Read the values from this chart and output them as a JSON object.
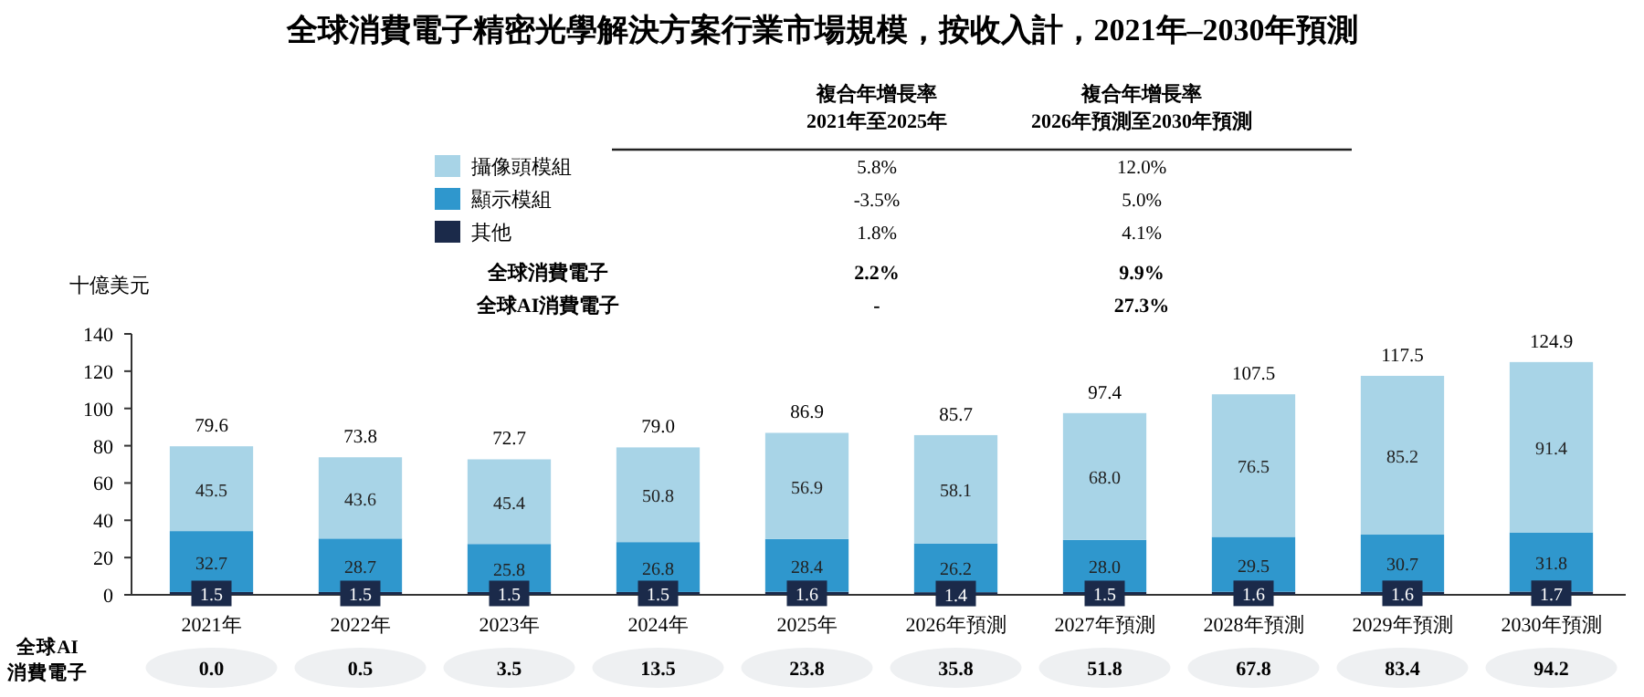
{
  "chart_data": {
    "type": "bar",
    "title": "全球消費電子精密光學解決方案行業市場規模，按收入計，2021年–2030年預測",
    "ylabel": "十億美元",
    "stacked": true,
    "legend": "top",
    "grid": false,
    "categories": [
      "2021年",
      "2022年",
      "2023年",
      "2024年",
      "2025年",
      "2026年預測",
      "2027年預測",
      "2028年預測",
      "2029年預測",
      "2030年預測"
    ],
    "ylim": [
      0,
      140
    ],
    "yticks": [
      0,
      20,
      40,
      60,
      80,
      100,
      120,
      140
    ],
    "series": [
      {
        "name": "其他",
        "color": "#1b2a4a",
        "values": [
          1.5,
          1.5,
          1.5,
          1.5,
          1.6,
          1.4,
          1.5,
          1.6,
          1.6,
          1.7
        ],
        "value_labels": [
          "1.5",
          "1.5",
          "1.5",
          "1.5",
          "1.6",
          "1.4",
          "1.5",
          "1.6",
          "1.6",
          "1.7"
        ]
      },
      {
        "name": "顯示模組",
        "color": "#2f97cd",
        "values": [
          32.7,
          28.7,
          25.8,
          26.8,
          28.4,
          26.2,
          28.0,
          29.5,
          30.7,
          31.8
        ],
        "value_labels": [
          "32.7",
          "28.7",
          "25.8",
          "26.8",
          "28.4",
          "26.2",
          "28.0",
          "29.5",
          "30.7",
          "31.8"
        ]
      },
      {
        "name": "攝像頭模組",
        "color": "#a8d4e7",
        "values": [
          45.5,
          43.6,
          45.4,
          50.8,
          56.9,
          58.1,
          68.0,
          76.5,
          85.2,
          91.4
        ],
        "value_labels": [
          "45.5",
          "43.6",
          "45.4",
          "50.8",
          "56.9",
          "58.1",
          "68.0",
          "76.5",
          "85.2",
          "91.4"
        ]
      }
    ],
    "totals": [
      "79.6",
      "73.8",
      "72.7",
      "79.0",
      "86.9",
      "85.7",
      "97.4",
      "107.5",
      "117.5",
      "124.9"
    ],
    "annotations": [
      "複合年增長率",
      "2021年至2025年",
      "複合年增長率",
      "2026年預測至2030年預測",
      "1.8%",
      "4.1%",
      "-3.5%",
      "5.0%",
      "5.8%",
      "12.0%",
      "全球消費電子",
      "2.2%",
      "9.9%",
      "全球AI消費電子",
      "-",
      "27.3%",
      "全球AI",
      "消費電子",
      "0.0",
      "0.5",
      "3.5",
      "13.5",
      "23.8",
      "35.8",
      "51.8",
      "67.8",
      "83.4",
      "94.2"
    ]
  }
}
